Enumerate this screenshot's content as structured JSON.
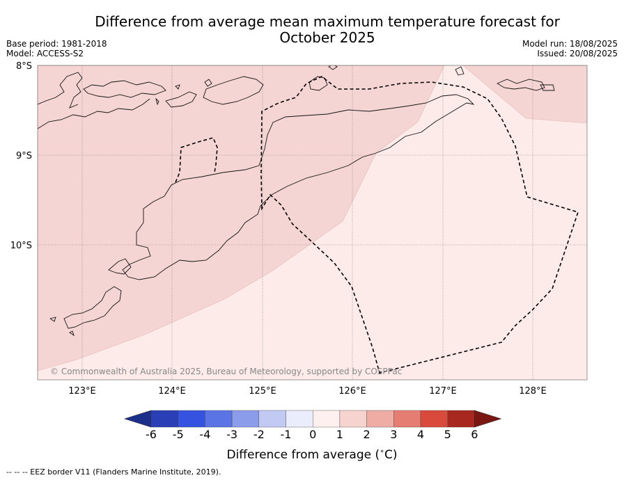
{
  "title": {
    "line1": "Difference from average mean maximum temperature forecast for",
    "line2": "October 2025"
  },
  "meta": {
    "base_period": "Base period: 1981-2018",
    "model": "Model: ACCESS-S2",
    "model_run": "Model run: 18/08/2025",
    "issued": "Issued: 20/08/2025"
  },
  "map": {
    "lon_range": [
      122.5,
      128.6
    ],
    "lat_range": [
      -11.5,
      -8.0
    ],
    "lon_labels": [
      "123°E",
      "124°E",
      "125°E",
      "126°E",
      "127°E",
      "128°E"
    ],
    "lat_labels": [
      "8°S",
      "9°S",
      "10°S"
    ],
    "copyright": "© Commonwealth of Australia 2025, Bureau of Meteorology, supported by COSPPac",
    "fill_colors": {
      "1_to_2": "#f5d5d3",
      "0_to_1": "#fcebe9"
    }
  },
  "colorbar": {
    "ticks": [
      "-6",
      "-5",
      "-4",
      "-3",
      "-2",
      "-1",
      "0",
      "1",
      "2",
      "3",
      "4",
      "5",
      "6"
    ],
    "colors": [
      "#1c2f8a",
      "#2a3fb5",
      "#3553e0",
      "#5a74e6",
      "#8b9ceb",
      "#c2caf4",
      "#eaedfb",
      "#fdf0ee",
      "#f6d3cf",
      "#efaca5",
      "#e67d73",
      "#d94a3d",
      "#a8271f",
      "#7a1713"
    ],
    "label": "Difference from average ($^\\circ$C)"
  },
  "footer": "-- -- -- EEZ border V11 (Flanders Marine Institute, 2019)."
}
